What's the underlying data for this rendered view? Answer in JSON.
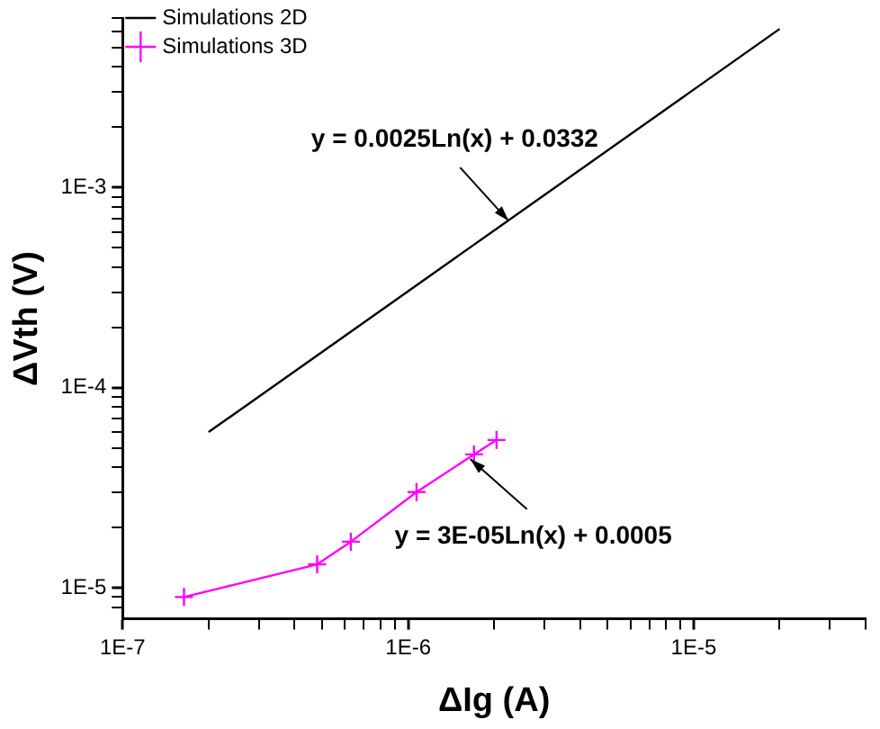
{
  "chart_data": {
    "type": "line",
    "xlabel": "ΔIg (A)",
    "ylabel": "ΔVth (V)",
    "log": "xy",
    "grid": false,
    "legend": "top left",
    "line_style": "solid",
    "xlim": [
      1e-07,
      4e-05
    ],
    "ylim": [
      7e-06,
      0.007
    ],
    "xticks": [
      {
        "value": 1e-07,
        "label": "1E-7"
      },
      {
        "value": 2e-07,
        "label": null
      },
      {
        "value": 3e-07,
        "label": null
      },
      {
        "value": 4e-07,
        "label": null
      },
      {
        "value": 5e-07,
        "label": null
      },
      {
        "value": 6e-07,
        "label": null
      },
      {
        "value": 7e-07,
        "label": null
      },
      {
        "value": 8e-07,
        "label": null
      },
      {
        "value": 9e-07,
        "label": null
      },
      {
        "value": 1e-06,
        "label": "1E-6"
      },
      {
        "value": 2e-06,
        "label": null
      },
      {
        "value": 3e-06,
        "label": null
      },
      {
        "value": 4e-06,
        "label": null
      },
      {
        "value": 5e-06,
        "label": null
      },
      {
        "value": 6e-06,
        "label": null
      },
      {
        "value": 7e-06,
        "label": null
      },
      {
        "value": 8e-06,
        "label": null
      },
      {
        "value": 9e-06,
        "label": null
      },
      {
        "value": 1e-05,
        "label": "1E-5"
      },
      {
        "value": 2e-05,
        "label": null
      },
      {
        "value": 3e-05,
        "label": null
      },
      {
        "value": 4e-05,
        "label": null
      }
    ],
    "yticks": [
      {
        "value": 8e-06,
        "label": null
      },
      {
        "value": 9e-06,
        "label": null
      },
      {
        "value": 1e-05,
        "label": "1E-5"
      },
      {
        "value": 2e-05,
        "label": null
      },
      {
        "value": 3e-05,
        "label": null
      },
      {
        "value": 4e-05,
        "label": null
      },
      {
        "value": 5e-05,
        "label": null
      },
      {
        "value": 6e-05,
        "label": null
      },
      {
        "value": 7e-05,
        "label": null
      },
      {
        "value": 8e-05,
        "label": null
      },
      {
        "value": 9e-05,
        "label": null
      },
      {
        "value": 0.0001,
        "label": "1E-4"
      },
      {
        "value": 0.0002,
        "label": null
      },
      {
        "value": 0.0003,
        "label": null
      },
      {
        "value": 0.0004,
        "label": null
      },
      {
        "value": 0.0005,
        "label": null
      },
      {
        "value": 0.0006,
        "label": null
      },
      {
        "value": 0.0007,
        "label": null
      },
      {
        "value": 0.0008,
        "label": null
      },
      {
        "value": 0.0009,
        "label": null
      },
      {
        "value": 0.001,
        "label": "1E-3"
      },
      {
        "value": 0.002,
        "label": null
      },
      {
        "value": 0.003,
        "label": null
      },
      {
        "value": 0.004,
        "label": null
      },
      {
        "value": 0.005,
        "label": null
      },
      {
        "value": 0.006,
        "label": null
      },
      {
        "value": 0.007,
        "label": null
      }
    ],
    "series": [
      {
        "name": "Simulations 2D",
        "color": "#000000",
        "marker": "none",
        "x": [
          2e-07,
          2e-05
        ],
        "values": [
          6e-05,
          0.0062
        ]
      },
      {
        "name": "Simulations 3D",
        "color": "#ff00ff",
        "marker": "cross",
        "x": [
          1.64e-07,
          4.8e-07,
          6.3e-07,
          1.07e-06,
          1.7e-06,
          2.04e-06
        ],
        "values": [
          9e-06,
          1.31e-05,
          1.7e-05,
          3.01e-05,
          4.64e-05,
          5.48e-05
        ]
      }
    ],
    "annotations": [
      {
        "text": "y = 0.0025Ln(x) + 0.0332",
        "x": 2.25e-06,
        "y": 0.00068
      },
      {
        "text": "y = 3E-05Ln(x) + 0.0005",
        "x": 1.65e-06,
        "y": 4.4e-05
      }
    ]
  }
}
